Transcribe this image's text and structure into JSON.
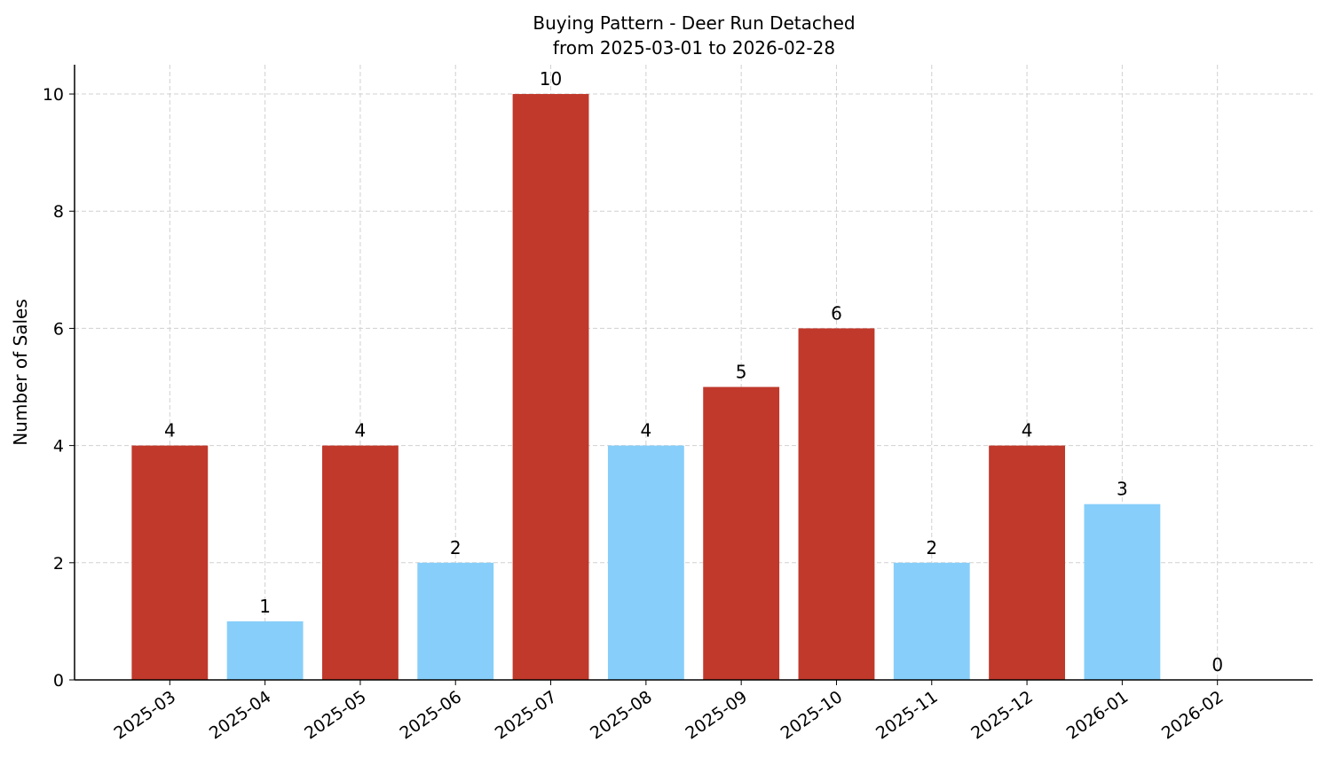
{
  "chart_data": {
    "type": "bar",
    "title": "Buying Pattern - Deer Run Detached",
    "subtitle": "from 2025-03-01 to 2026-02-28",
    "y_label": "Number of Sales",
    "categories": [
      "2025-03",
      "2025-04",
      "2025-05",
      "2025-06",
      "2025-07",
      "2025-08",
      "2025-09",
      "2025-10",
      "2025-11",
      "2025-12",
      "2026-01",
      "2026-02"
    ],
    "values": [
      4,
      1,
      4,
      2,
      10,
      4,
      5,
      6,
      2,
      4,
      3,
      0
    ],
    "colors": [
      "#c0392b",
      "#87cefa",
      "#c0392b",
      "#87cefa",
      "#c0392b",
      "#87cefa",
      "#c0392b",
      "#c0392b",
      "#87cefa",
      "#c0392b",
      "#87cefa",
      "#87cefa"
    ],
    "ylim": [
      0,
      10.5
    ],
    "yticks": [
      0,
      2,
      4,
      6,
      8,
      10
    ],
    "grid": true
  }
}
